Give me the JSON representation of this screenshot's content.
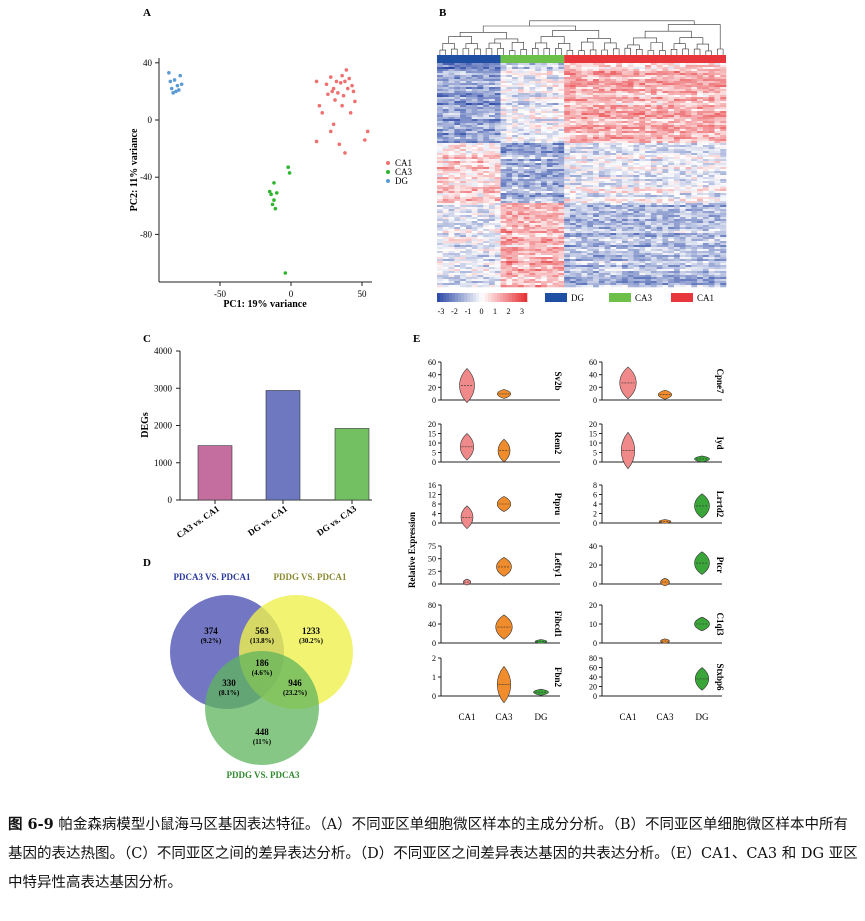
{
  "panels": {
    "A": {
      "letter": "A",
      "type": "scatter",
      "xlabel": "PC1: 19% variance",
      "ylabel": "PC2: 11% variance",
      "xticks": [
        "-50",
        "0",
        "50"
      ],
      "yticks": [
        "40",
        "0",
        "-40",
        "-80"
      ],
      "legend": [
        "CA1",
        "CA3",
        "DG"
      ],
      "colors": {
        "CA1": "#f07070",
        "CA3": "#2db52d",
        "DG": "#5b9bd5"
      },
      "points": {
        "DG": [
          [
            -86,
            33
          ],
          [
            -82,
            28
          ],
          [
            -78,
            31
          ],
          [
            -85,
            27
          ],
          [
            -80,
            24
          ],
          [
            -84,
            22
          ],
          [
            -81,
            20
          ],
          [
            -79,
            21
          ],
          [
            -77,
            25
          ],
          [
            -83,
            19
          ]
        ],
        "CA3": [
          [
            -12,
            -44
          ],
          [
            -10,
            -51
          ],
          [
            -14,
            -52
          ],
          [
            -12,
            -56
          ],
          [
            -13,
            -59
          ],
          [
            -11,
            -62
          ],
          [
            -2,
            -33
          ],
          [
            -1,
            -37
          ],
          [
            -4,
            -107
          ],
          [
            -15,
            -50
          ]
        ],
        "CA1": [
          [
            18,
            27
          ],
          [
            20,
            10
          ],
          [
            22,
            5
          ],
          [
            25,
            25
          ],
          [
            28,
            30
          ],
          [
            30,
            22
          ],
          [
            32,
            27
          ],
          [
            33,
            19
          ],
          [
            35,
            26
          ],
          [
            36,
            31
          ],
          [
            38,
            27
          ],
          [
            40,
            22
          ],
          [
            41,
            29
          ],
          [
            43,
            24
          ],
          [
            44,
            20
          ],
          [
            30,
            -3
          ],
          [
            28,
            -8
          ],
          [
            36,
            10
          ],
          [
            42,
            5
          ],
          [
            45,
            13
          ],
          [
            52,
            -14
          ],
          [
            54,
            -8
          ],
          [
            18,
            -15
          ],
          [
            34,
            -17
          ],
          [
            38,
            -23
          ],
          [
            29,
            20
          ],
          [
            31,
            14
          ],
          [
            37,
            17
          ],
          [
            39,
            35
          ],
          [
            26,
            18
          ]
        ]
      }
    },
    "B": {
      "letter": "B",
      "scale_ticks": [
        "-3",
        "-2",
        "-1",
        "0",
        "1",
        "2",
        "3"
      ],
      "groups": [
        {
          "name": "DG",
          "color": "#1f4fa3"
        },
        {
          "name": "CA3",
          "color": "#6cc04a"
        },
        {
          "name": "CA1",
          "color": "#e8373c"
        }
      ]
    },
    "C": {
      "letter": "C",
      "ylabel": "DEGs",
      "yticks": [
        "0",
        "1000",
        "2000",
        "3000",
        "4000"
      ]
    },
    "D": {
      "letter": "D",
      "set_labels": {
        "a": "PDCA3 VS. PDCA1",
        "b": "PDDG VS. PDCA1",
        "c": "PDDG VS. PDCA3"
      },
      "regions": [
        {
          "value": "374",
          "pct": "(9.2%)"
        },
        {
          "value": "563",
          "pct": "(13.8%)"
        },
        {
          "value": "1233",
          "pct": "(30.2%)"
        },
        {
          "value": "186",
          "pct": "(4.6%)"
        },
        {
          "value": "330",
          "pct": "(8.1%)"
        },
        {
          "value": "946",
          "pct": "(23.2%)"
        },
        {
          "value": "448",
          "pct": "(11%)"
        }
      ]
    },
    "E": {
      "letter": "E",
      "ylabel": "Relative Expression",
      "xcats": [
        "CA1",
        "CA3",
        "DG"
      ],
      "colors": {
        "CA1": "#f08a8a",
        "CA3": "#f08c2c",
        "DG": "#3aa63a"
      },
      "left": [
        {
          "gene": "Sv2b",
          "yticks": [
            "0",
            "20",
            "40",
            "60"
          ]
        },
        {
          "gene": "Rem2",
          "yticks": [
            "0",
            "5",
            "10",
            "15",
            "20"
          ]
        },
        {
          "gene": "Ptpru",
          "yticks": [
            "0",
            "4",
            "8",
            "12",
            "16"
          ]
        },
        {
          "gene": "Lefty1",
          "yticks": [
            "0",
            "25",
            "50",
            "75"
          ]
        },
        {
          "gene": "Fibcd1",
          "yticks": [
            "0",
            "40",
            "80"
          ]
        },
        {
          "gene": "Fbn2",
          "yticks": [
            "0",
            "1",
            "2"
          ]
        }
      ],
      "right": [
        {
          "gene": "Cpne7",
          "yticks": [
            "0",
            "20",
            "40",
            "60"
          ]
        },
        {
          "gene": "Iyd",
          "yticks": [
            "0",
            "5",
            "10",
            "15",
            "20"
          ]
        },
        {
          "gene": "Lrrtd2",
          "yticks": [
            "0",
            "2",
            "4",
            "6",
            "8"
          ]
        },
        {
          "gene": "Ptcr",
          "yticks": [
            "0",
            "20",
            "40"
          ]
        },
        {
          "gene": "C1ql3",
          "yticks": [
            "0",
            "10",
            "20"
          ]
        },
        {
          "gene": "Stxbp6",
          "yticks": [
            "0",
            "20",
            "40",
            "60",
            "80"
          ]
        }
      ]
    }
  },
  "chart_data": [
    {
      "type": "bar",
      "categories": [
        "CA3 vs. CA1",
        "DG vs. CA1",
        "DG vs. CA3"
      ],
      "values": [
        1460,
        2940,
        1920
      ],
      "colors": [
        "#c46ea0",
        "#6d78c1",
        "#72c062"
      ],
      "ylabel": "DEGs",
      "ylim": [
        0,
        4000
      ]
    }
  ],
  "caption": {
    "label": "图 6-9",
    "text": " 帕金森病模型小鼠海马区基因表达特征。（A）不同亚区单细胞微区样本的主成分分析。（B）不同亚区单细胞微区样本中所有基因的表达热图。（C）不同亚区之间的差异表达分析。（D）不同亚区之间差异表达基因的共表达分析。（E）CA1、CA3 和 DG 亚区中特异性高表达基因分析。"
  }
}
